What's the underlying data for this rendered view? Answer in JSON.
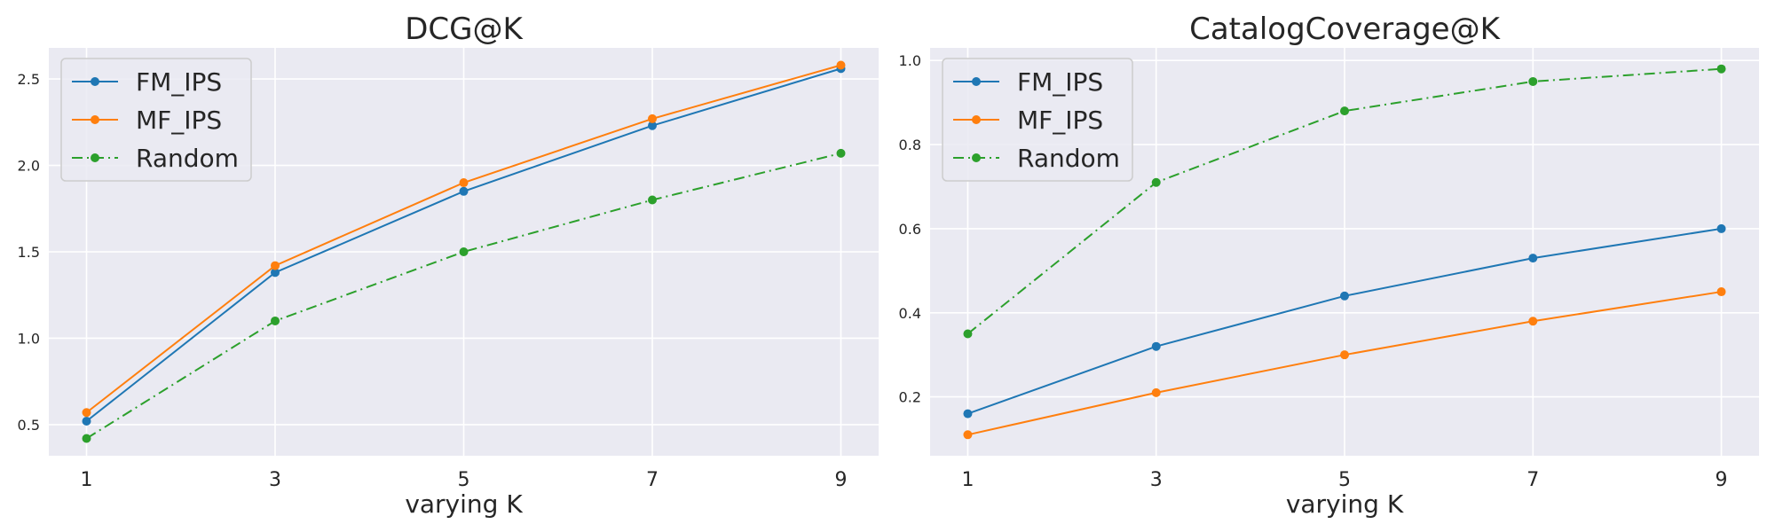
{
  "chart_data": [
    {
      "type": "line",
      "title": "DCG@K",
      "xlabel": "varying K",
      "ylabel": "",
      "x": [
        1,
        3,
        5,
        7,
        9
      ],
      "xlim": [
        0.6,
        9.4
      ],
      "ylim": [
        0.32,
        2.68
      ],
      "yticks": [
        0.5,
        1.0,
        1.5,
        2.0,
        2.5
      ],
      "grid": true,
      "legend": "top-left",
      "series": [
        {
          "name": "FM_IPS",
          "values": [
            0.52,
            1.38,
            1.85,
            2.23,
            2.56
          ],
          "color": "#1f77b4",
          "linestyle": "solid"
        },
        {
          "name": "MF_IPS",
          "values": [
            0.57,
            1.42,
            1.9,
            2.27,
            2.58
          ],
          "color": "#ff7f0e",
          "linestyle": "solid"
        },
        {
          "name": "Random",
          "values": [
            0.42,
            1.1,
            1.5,
            1.8,
            2.07
          ],
          "color": "#2ca02c",
          "linestyle": "dashdot"
        }
      ]
    },
    {
      "type": "line",
      "title": "CatalogCoverage@K",
      "xlabel": "varying K",
      "ylabel": "",
      "x": [
        1,
        3,
        5,
        7,
        9
      ],
      "xlim": [
        0.6,
        9.4
      ],
      "ylim": [
        0.06,
        1.03
      ],
      "yticks": [
        0.2,
        0.4,
        0.6,
        0.8,
        1.0
      ],
      "grid": true,
      "legend": "top-left",
      "series": [
        {
          "name": "FM_IPS",
          "values": [
            0.16,
            0.32,
            0.44,
            0.53,
            0.6
          ],
          "color": "#1f77b4",
          "linestyle": "solid"
        },
        {
          "name": "MF_IPS",
          "values": [
            0.11,
            0.21,
            0.3,
            0.38,
            0.45
          ],
          "color": "#ff7f0e",
          "linestyle": "solid"
        },
        {
          "name": "Random",
          "values": [
            0.35,
            0.71,
            0.88,
            0.95,
            0.98
          ],
          "color": "#2ca02c",
          "linestyle": "dashdot"
        }
      ]
    }
  ]
}
